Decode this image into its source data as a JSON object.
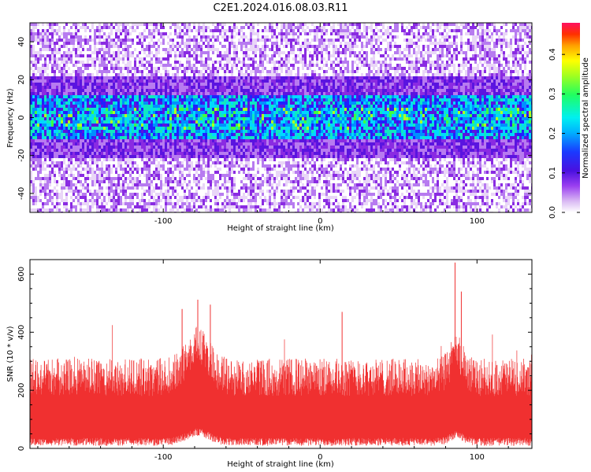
{
  "chart_data": [
    {
      "type": "heatmap",
      "title": "C2E1.2024.016.08.03.R11",
      "xlabel": "Height of straight line (km)",
      "ylabel": "Frequency (Hz)",
      "xlim": [
        -185,
        135
      ],
      "ylim": [
        -50,
        50
      ],
      "xticks": [
        -100,
        0,
        100
      ],
      "yticks": [
        -40,
        -20,
        0,
        20,
        40
      ],
      "band_center_hz": 0,
      "band_halfwidth_hz": 12,
      "colorbar": {
        "label": "Normalized spectral amplitude",
        "range": [
          0.0,
          0.48
        ],
        "ticks": [
          "0.0",
          "0.1",
          "0.2",
          "0.3",
          "0.4"
        ]
      },
      "colormap": [
        "#ffffff",
        "#e9d6f7",
        "#b77bf0",
        "#8a2be2",
        "#5a14e0",
        "#2020ff",
        "#0090ff",
        "#00d8ff",
        "#10e8c0",
        "#40ff40",
        "#b0ff20",
        "#ffff00",
        "#ffa000",
        "#ff3000",
        "#ff1060"
      ]
    },
    {
      "type": "line",
      "title": "",
      "xlabel": "Height of straight line (km)",
      "ylabel": "SNR (10 * v/v)",
      "xlim": [
        -185,
        135
      ],
      "ylim": [
        0,
        650
      ],
      "xticks": [
        -100,
        0,
        100
      ],
      "yticks": [
        0,
        200,
        400,
        600
      ],
      "color": "#f03030",
      "baseline_band": [
        30,
        280
      ],
      "peaks": [
        {
          "x": -78,
          "y": 512
        },
        {
          "x": -88,
          "y": 480
        },
        {
          "x": -70,
          "y": 495
        },
        {
          "x": 86,
          "y": 640
        },
        {
          "x": 90,
          "y": 540
        },
        {
          "x": 14,
          "y": 470
        }
      ]
    }
  ]
}
